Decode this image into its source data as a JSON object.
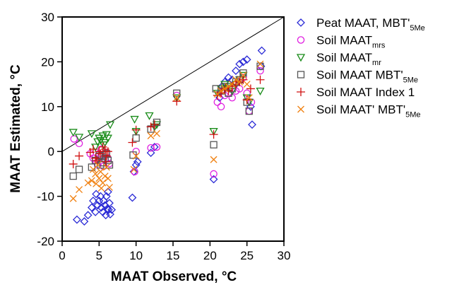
{
  "chart_data": {
    "type": "scatter",
    "xlabel": "MAAT Observed, °C",
    "ylabel": "MAAT Estimated, °C",
    "xlim": [
      0,
      30
    ],
    "ylim": [
      -20,
      30
    ],
    "x_ticks": [
      0,
      5,
      10,
      15,
      20,
      25,
      30
    ],
    "y_ticks": [
      -20,
      -10,
      0,
      10,
      20,
      30
    ],
    "x_tick_labels": [
      "0",
      "5",
      "10",
      "15",
      "20",
      "25",
      "30"
    ],
    "y_tick_labels": [
      "-20",
      "-10",
      "0",
      "10",
      "20",
      "30"
    ],
    "grid": false,
    "legend_placement": "right",
    "reference_line": {
      "x": [
        0,
        30
      ],
      "y": [
        0,
        30
      ]
    },
    "series": [
      {
        "name": "Peat MAAT, MBT'",
        "name_sub": "5Me",
        "marker": "diamond",
        "color": "#2b2bd6",
        "points": [
          [
            2,
            -15.2
          ],
          [
            3,
            -15.6
          ],
          [
            3.5,
            -14.2
          ],
          [
            4,
            -12.5
          ],
          [
            4.2,
            -11
          ],
          [
            4.5,
            -13.5
          ],
          [
            4.8,
            -12
          ],
          [
            5,
            -11
          ],
          [
            5.2,
            -10
          ],
          [
            5.3,
            -12.5
          ],
          [
            5.5,
            -13.5
          ],
          [
            5.6,
            -11
          ],
          [
            5.8,
            -12
          ],
          [
            6,
            -10
          ],
          [
            6.2,
            -9
          ],
          [
            6.3,
            -13
          ],
          [
            6.5,
            -14
          ],
          [
            6.4,
            -11.5
          ],
          [
            6.1,
            -12.8
          ],
          [
            5.9,
            -14.2
          ],
          [
            6.7,
            -13
          ],
          [
            4.6,
            -9.5
          ],
          [
            9.5,
            -10.3
          ],
          [
            9.7,
            -4.5
          ],
          [
            10,
            -3
          ],
          [
            10.2,
            -2.3
          ],
          [
            12,
            -0.3
          ],
          [
            12.5,
            1
          ],
          [
            20.5,
            -6.2
          ],
          [
            21.3,
            12
          ],
          [
            21.6,
            14.5
          ],
          [
            22,
            15.5
          ],
          [
            22.5,
            16.5
          ],
          [
            23,
            16
          ],
          [
            23.5,
            18
          ],
          [
            24,
            19.5
          ],
          [
            24.5,
            20
          ],
          [
            25,
            20.5
          ],
          [
            25.5,
            10
          ],
          [
            25.7,
            6
          ],
          [
            27,
            22.5
          ],
          [
            26.9,
            19
          ]
        ]
      },
      {
        "name": "Soil MAAT",
        "name_sub": "mrs",
        "marker": "circle",
        "color": "#e020e0",
        "points": [
          [
            1.6,
            2.8
          ],
          [
            2.3,
            1.8
          ],
          [
            3.8,
            -0.5
          ],
          [
            4.2,
            -1.5
          ],
          [
            4.5,
            -2
          ],
          [
            5,
            -0.5
          ],
          [
            5.2,
            -1.2
          ],
          [
            5.5,
            -2.5
          ],
          [
            5.8,
            -1.8
          ],
          [
            6,
            -0.3
          ],
          [
            6.2,
            -1.5
          ],
          [
            4.8,
            -3
          ],
          [
            5.6,
            -3.3
          ],
          [
            6.4,
            -2.7
          ],
          [
            5.3,
            0.5
          ],
          [
            9.8,
            -4.5
          ],
          [
            10,
            0
          ],
          [
            12,
            0.8
          ],
          [
            12.8,
            1
          ],
          [
            15.5,
            12.5
          ],
          [
            20.5,
            -5
          ],
          [
            21,
            11
          ],
          [
            21.5,
            10
          ],
          [
            22,
            12.5
          ],
          [
            22.5,
            13
          ],
          [
            23,
            12
          ],
          [
            23.5,
            13.5
          ],
          [
            24,
            14
          ],
          [
            24.5,
            16.5
          ],
          [
            25,
            13
          ],
          [
            25.3,
            9
          ],
          [
            25.6,
            11
          ],
          [
            26.8,
            18
          ]
        ]
      },
      {
        "name": "Soil MAAT",
        "name_sub": "mr",
        "marker": "triangle-down",
        "color": "#1a8c1a",
        "points": [
          [
            1.5,
            4.3
          ],
          [
            2.3,
            3.2
          ],
          [
            4,
            4
          ],
          [
            4.5,
            1
          ],
          [
            5,
            3
          ],
          [
            5.2,
            2.5
          ],
          [
            5.5,
            3.5
          ],
          [
            5.8,
            2
          ],
          [
            6,
            3.8
          ],
          [
            6.2,
            3
          ],
          [
            6.5,
            6
          ],
          [
            5.6,
            1.5
          ],
          [
            4.8,
            2.2
          ],
          [
            9.8,
            7.2
          ],
          [
            10,
            4.5
          ],
          [
            11.8,
            8
          ],
          [
            12.5,
            5.5
          ],
          [
            12.8,
            6
          ],
          [
            15.5,
            12
          ],
          [
            20.5,
            4.5
          ],
          [
            21,
            13
          ],
          [
            21.5,
            14
          ],
          [
            22,
            15
          ],
          [
            22.5,
            14.5
          ],
          [
            23,
            13.5
          ],
          [
            23.5,
            15
          ],
          [
            24,
            16
          ],
          [
            24.5,
            17
          ],
          [
            25,
            12
          ],
          [
            25.3,
            11
          ],
          [
            26.8,
            13.5
          ]
        ]
      },
      {
        "name": "Soil MAAT MBT'",
        "name_sub": "5Me",
        "marker": "square",
        "color": "#555555",
        "points": [
          [
            1.5,
            -5.5
          ],
          [
            2.3,
            -4
          ],
          [
            4,
            -3.5
          ],
          [
            4.5,
            -2
          ],
          [
            5,
            -1
          ],
          [
            5.2,
            -3
          ],
          [
            5.5,
            -2.5
          ],
          [
            5.8,
            -1.5
          ],
          [
            6,
            -0.5
          ],
          [
            6.2,
            -2
          ],
          [
            6.4,
            -3
          ],
          [
            5.4,
            -0.8
          ],
          [
            9.6,
            -0.8
          ],
          [
            10,
            3
          ],
          [
            12,
            5
          ],
          [
            12.8,
            6.5
          ],
          [
            15.5,
            13
          ],
          [
            20.5,
            1.5
          ],
          [
            20.8,
            14
          ],
          [
            21.5,
            13.5
          ],
          [
            22,
            14.5
          ],
          [
            22.5,
            13
          ],
          [
            23,
            14
          ],
          [
            23.5,
            15.5
          ],
          [
            24,
            16
          ],
          [
            24.5,
            17.5
          ],
          [
            25,
            11
          ],
          [
            25.3,
            9
          ],
          [
            26.8,
            19
          ]
        ]
      },
      {
        "name": "Soil MAAT Index 1",
        "name_sub": "",
        "marker": "plus",
        "color": "#d01010",
        "points": [
          [
            1.5,
            -2.8
          ],
          [
            2.3,
            -1
          ],
          [
            3.8,
            -0.2
          ],
          [
            4.2,
            0.5
          ],
          [
            4.5,
            -1.5
          ],
          [
            5,
            0
          ],
          [
            5.2,
            -0.5
          ],
          [
            5.5,
            1
          ],
          [
            5.8,
            0.5
          ],
          [
            6,
            -1
          ],
          [
            6.2,
            0
          ],
          [
            4.7,
            -2
          ],
          [
            5.9,
            -2.3
          ],
          [
            9.5,
            2
          ],
          [
            10,
            4.8
          ],
          [
            12,
            5.5
          ],
          [
            12.5,
            6
          ],
          [
            15.5,
            11.2
          ],
          [
            20.5,
            3.8
          ],
          [
            21,
            12.5
          ],
          [
            21.5,
            13
          ],
          [
            22,
            14
          ],
          [
            22.5,
            13.5
          ],
          [
            23,
            14.5
          ],
          [
            23.5,
            15
          ],
          [
            24,
            15.5
          ],
          [
            24.5,
            16
          ],
          [
            25,
            11.5
          ],
          [
            25.5,
            14
          ],
          [
            26.8,
            16
          ]
        ]
      },
      {
        "name": "Soil MAAT' MBT'",
        "name_sub": "5Me",
        "marker": "x",
        "color": "#f08010",
        "points": [
          [
            1.5,
            -10.5
          ],
          [
            2.3,
            -8.5
          ],
          [
            3.5,
            -7
          ],
          [
            4,
            -6.5
          ],
          [
            4.2,
            -4
          ],
          [
            4.5,
            -5
          ],
          [
            4.8,
            -3
          ],
          [
            5,
            -6
          ],
          [
            5.2,
            -4.5
          ],
          [
            5.5,
            -7
          ],
          [
            5.8,
            -5.5
          ],
          [
            6,
            -3.5
          ],
          [
            6.2,
            -6
          ],
          [
            6.4,
            -8
          ],
          [
            5.3,
            -8.2
          ],
          [
            4.6,
            -7.2
          ],
          [
            9.7,
            -4
          ],
          [
            10,
            -1
          ],
          [
            12,
            3.5
          ],
          [
            12.8,
            4
          ],
          [
            15.5,
            12
          ],
          [
            20.5,
            -1.8
          ],
          [
            21,
            12.8
          ],
          [
            21.5,
            13.5
          ],
          [
            22,
            14
          ],
          [
            22.5,
            14.5
          ],
          [
            23,
            15
          ],
          [
            23.5,
            16
          ],
          [
            24,
            15.5
          ],
          [
            24.5,
            17
          ],
          [
            25,
            15
          ],
          [
            25.3,
            12
          ],
          [
            26.8,
            19.5
          ]
        ]
      }
    ]
  }
}
